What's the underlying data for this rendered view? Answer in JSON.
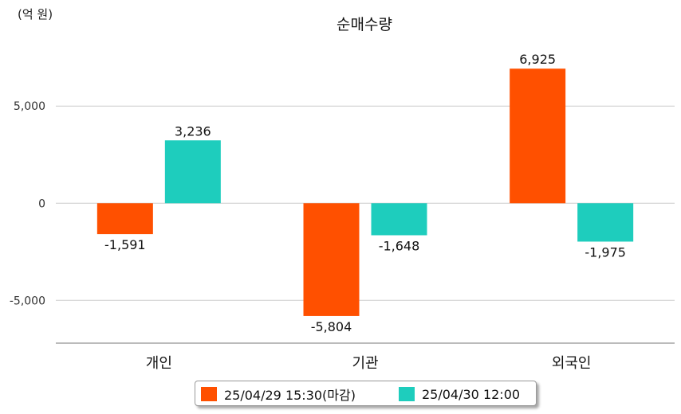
{
  "chart_data": {
    "type": "bar",
    "title": "순매수량",
    "unit_label": "(억 원)",
    "categories": [
      "개인",
      "기관",
      "외국인"
    ],
    "series": [
      {
        "name": "25/04/29 15:30(마감)",
        "color": "#ff5000",
        "values": [
          -1591,
          -5804,
          6925
        ],
        "labels": [
          "-1,591",
          "-5,804",
          "6,925"
        ]
      },
      {
        "name": "25/04/30 12:00",
        "color": "#1ecdbd",
        "values": [
          3236,
          -1648,
          -1975
        ],
        "labels": [
          "3,236",
          "-1,648",
          "-1,975"
        ]
      }
    ],
    "yticks": [
      5000,
      0,
      -5000
    ],
    "ytick_labels": [
      "5,000",
      "0",
      "-5,000"
    ],
    "ylim": [
      -7200,
      8000
    ],
    "grid": true,
    "legend_position": "bottom"
  }
}
